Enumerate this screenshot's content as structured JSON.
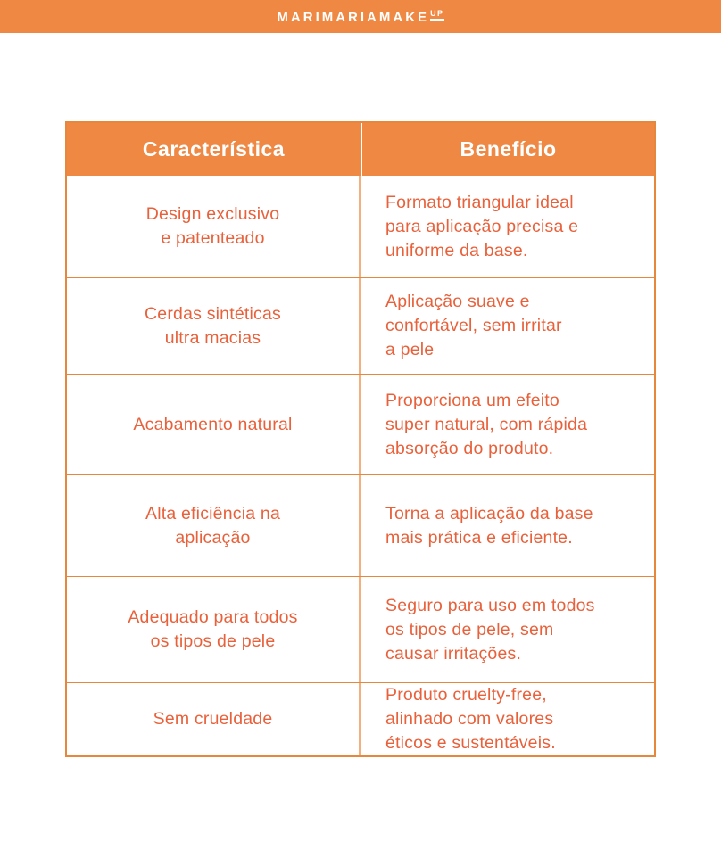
{
  "brand": {
    "logo_text": "MARIMARIAMAKE",
    "logo_sup": "UP"
  },
  "colors": {
    "bar_and_header_fill": "#EE8843",
    "cell_text": "#E8613B",
    "outer_border": "#E6873B",
    "column_divider": "#F3AF7C",
    "header_text": "#FFFFFF",
    "background": "#FFFFFF"
  },
  "table": {
    "headers": [
      "Característica",
      "Benefício"
    ],
    "rows": [
      {
        "feature": "Design exclusivo\ne patenteado",
        "benefit": "Formato triangular ideal\npara aplicação precisa e\nuniforme da base."
      },
      {
        "feature": "Cerdas sintéticas\nultra macias",
        "benefit": "Aplicação suave e\nconfortável, sem irritar\na pele"
      },
      {
        "feature": "Acabamento natural",
        "benefit": "Proporciona um efeito\nsuper natural, com rápida\nabsorção do produto."
      },
      {
        "feature": "Alta eficiência na\naplicação",
        "benefit": "Torna a aplicação da base\nmais prática e eficiente."
      },
      {
        "feature": "Adequado para todos\nos tipos de pele",
        "benefit": "Seguro para uso em todos\nos tipos de pele, sem\ncausar irritações."
      },
      {
        "feature": "Sem crueldade",
        "benefit": "Produto cruelty-free,\nalinhado com valores\néticos e sustentáveis."
      }
    ]
  }
}
